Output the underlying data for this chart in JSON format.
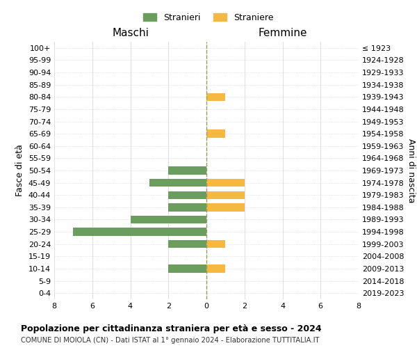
{
  "age_groups": [
    "100+",
    "95-99",
    "90-94",
    "85-89",
    "80-84",
    "75-79",
    "70-74",
    "65-69",
    "60-64",
    "55-59",
    "50-54",
    "45-49",
    "40-44",
    "35-39",
    "30-34",
    "25-29",
    "20-24",
    "15-19",
    "10-14",
    "5-9",
    "0-4"
  ],
  "birth_years": [
    "≤ 1923",
    "1924-1928",
    "1929-1933",
    "1934-1938",
    "1939-1943",
    "1944-1948",
    "1949-1953",
    "1954-1958",
    "1959-1963",
    "1964-1968",
    "1969-1973",
    "1974-1978",
    "1979-1983",
    "1984-1988",
    "1989-1993",
    "1994-1998",
    "1999-2003",
    "2004-2008",
    "2009-2013",
    "2014-2018",
    "2019-2023"
  ],
  "maschi": [
    0,
    0,
    0,
    0,
    0,
    0,
    0,
    0,
    0,
    0,
    2,
    3,
    2,
    2,
    4,
    7,
    2,
    0,
    2,
    0,
    0
  ],
  "femmine": [
    0,
    0,
    0,
    0,
    1,
    0,
    0,
    1,
    0,
    0,
    0,
    2,
    2,
    2,
    0,
    0,
    1,
    0,
    1,
    0,
    0
  ],
  "color_maschi": "#6b9e5e",
  "color_femmine": "#f5b942",
  "title_main": "Popolazione per cittadinanza straniera per età e sesso - 2024",
  "title_sub": "COMUNE DI MOIOLA (CN) - Dati ISTAT al 1° gennaio 2024 - Elaborazione TUTTITALIA.IT",
  "label_maschi": "Stranieri",
  "label_femmine": "Straniere",
  "xlabel_left": "Maschi",
  "xlabel_right": "Femmine",
  "ylabel_left": "Fasce di età",
  "ylabel_right": "Anni di nascita",
  "xlim": 8,
  "background_color": "#ffffff",
  "grid_color": "#d0d0d0"
}
